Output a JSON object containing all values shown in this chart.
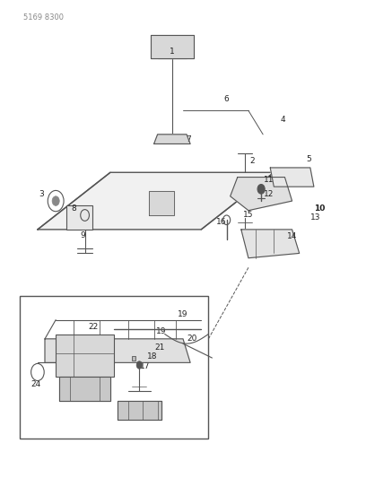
{
  "page_id": "5169 8300",
  "bg_color": "#ffffff",
  "line_color": "#555555",
  "text_color": "#333333",
  "fig_width": 4.08,
  "fig_height": 5.33,
  "dpi": 100
}
